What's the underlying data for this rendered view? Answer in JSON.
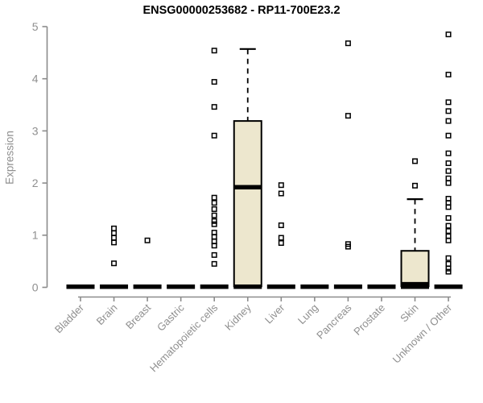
{
  "chart_data": {
    "type": "boxplot",
    "title": "ENSG00000253682 - RP11-700E23.2",
    "ylabel": "Expression",
    "xlabel": "",
    "ylim": [
      0,
      5
    ],
    "yticks": [
      0,
      1,
      2,
      3,
      4,
      5
    ],
    "grid": false,
    "legend": null,
    "categories": [
      "Bladder",
      "Brain",
      "Breast",
      "Gastric",
      "Hematopoietic cells",
      "Kidney",
      "Liver",
      "Lung",
      "Pancreas",
      "Prostate",
      "Skin",
      "Unknown / Other"
    ],
    "boxes": [
      {
        "low": 0,
        "q1": 0,
        "median": 0,
        "q3": 0,
        "high": 0,
        "outliers": []
      },
      {
        "low": 0,
        "q1": 0,
        "median": 0,
        "q3": 0,
        "high": 0,
        "outliers": [
          0.46,
          0.86,
          0.95,
          1.04,
          1.13
        ]
      },
      {
        "low": 0,
        "q1": 0,
        "median": 0,
        "q3": 0,
        "high": 0,
        "outliers": [
          0.9
        ]
      },
      {
        "low": 0,
        "q1": 0,
        "median": 0,
        "q3": 0,
        "high": 0,
        "outliers": []
      },
      {
        "low": 0,
        "q1": 0,
        "median": 0,
        "q3": 0,
        "high": 0,
        "outliers": [
          0.45,
          0.62,
          0.8,
          0.88,
          0.97,
          1.05,
          1.21,
          1.27,
          1.38,
          1.5,
          1.62,
          1.72,
          2.91,
          3.46,
          3.94,
          4.54
        ]
      },
      {
        "low": 0,
        "q1": 0,
        "median": 1.92,
        "q3": 3.19,
        "high": 4.57,
        "outliers": []
      },
      {
        "low": 0,
        "q1": 0,
        "median": 0,
        "q3": 0,
        "high": 0,
        "outliers": [
          0.85,
          0.95,
          1.19,
          1.8,
          1.96
        ]
      },
      {
        "low": 0,
        "q1": 0,
        "median": 0,
        "q3": 0,
        "high": 0,
        "outliers": []
      },
      {
        "low": 0,
        "q1": 0,
        "median": 0,
        "q3": 0,
        "high": 0,
        "outliers": [
          0.78,
          0.83,
          3.29,
          4.68
        ]
      },
      {
        "low": 0,
        "q1": 0,
        "median": 0,
        "q3": 0,
        "high": 0,
        "outliers": []
      },
      {
        "low": 0,
        "q1": 0.02,
        "median": 0.06,
        "q3": 0.7,
        "high": 1.69,
        "outliers": [
          1.95,
          2.42
        ]
      },
      {
        "low": 0,
        "q1": 0,
        "median": 0,
        "q3": 0,
        "high": 0,
        "outliers": [
          0.3,
          0.36,
          0.45,
          0.56,
          0.9,
          0.98,
          1.08,
          1.18,
          1.33,
          1.54,
          1.62,
          1.7,
          2.0,
          2.09,
          2.23,
          2.38,
          2.57,
          2.91,
          3.19,
          3.38,
          3.55,
          4.08,
          4.85
        ]
      }
    ],
    "colors": {
      "box_fill": "#EDE7CE",
      "box_stroke": "#000000",
      "median": "#000000",
      "whisker": "#000000",
      "outlier_stroke": "#000000",
      "axis": "#8C8C8C",
      "tick_label": "#8F8F8F",
      "title": "#000000"
    }
  }
}
